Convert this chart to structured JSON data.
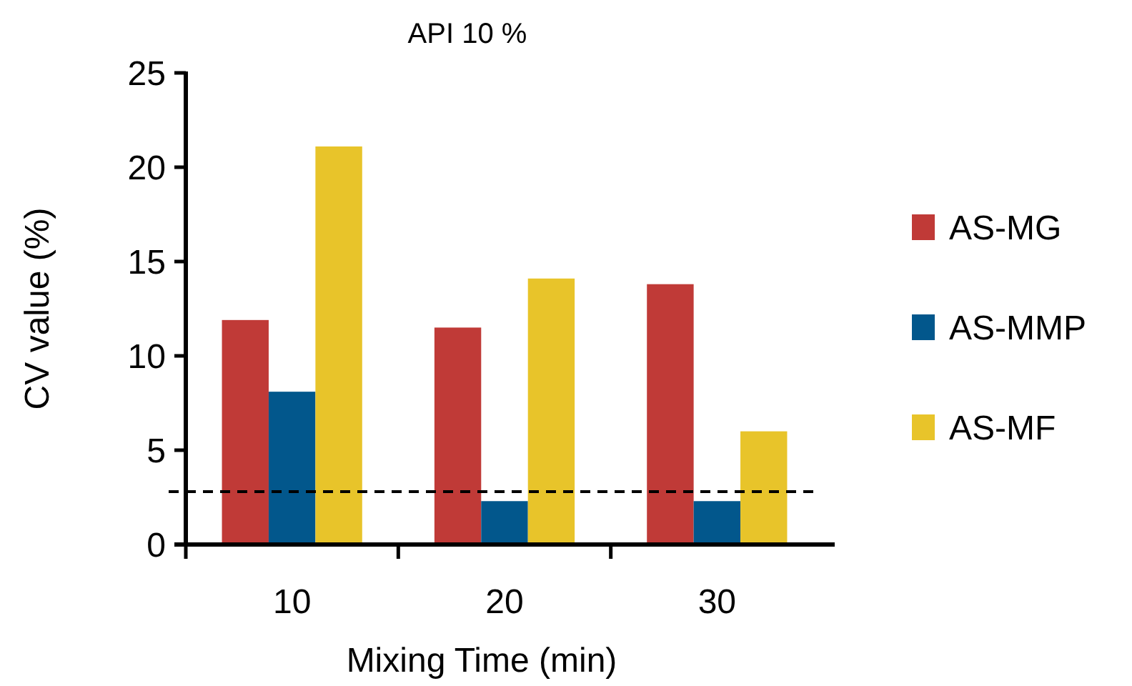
{
  "chart_data": {
    "type": "bar",
    "title": "API 10 %",
    "xlabel": "Mixing Time (min)",
    "ylabel": "CV value (%)",
    "categories": [
      "10",
      "20",
      "30"
    ],
    "series": [
      {
        "name": "AS-MG",
        "color": "#c03a37",
        "values": [
          11.9,
          11.5,
          13.8
        ]
      },
      {
        "name": "AS-MMP",
        "color": "#02578c",
        "values": [
          8.1,
          2.3,
          2.3
        ]
      },
      {
        "name": "AS-MF",
        "color": "#e8c42a",
        "values": [
          21.1,
          14.1,
          6.0
        ]
      }
    ],
    "ylim": [
      0,
      25
    ],
    "yticks": [
      0,
      5,
      10,
      15,
      20,
      25
    ],
    "grid": false,
    "legend": "right",
    "ref_lines": [
      {
        "axis": "y",
        "value": 2.8,
        "color": "#000000",
        "line_style": "dashed"
      }
    ]
  }
}
